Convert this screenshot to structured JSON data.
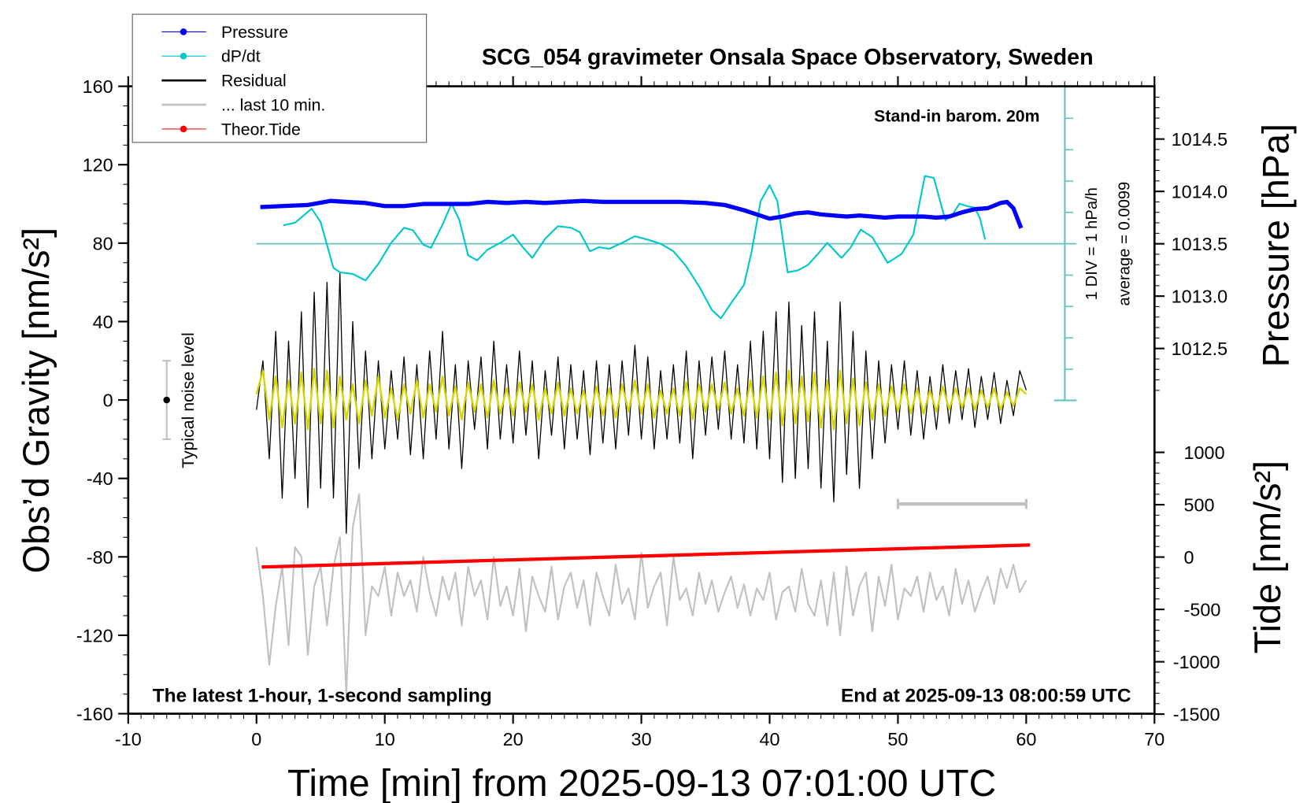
{
  "chart_data": {
    "type": "line",
    "title": "SCG_054 gravimeter Onsala Space Observatory, Sweden",
    "xlabel": "Time [min] from 2025-09-13 07:01:00 UTC",
    "ylabel": "Obs’d Gravity [nm/s²]",
    "ylabel_right_top": "Pressure [hPa]",
    "ylabel_right_bottom": "Tide [nm/s²]",
    "xlim": [
      -10,
      70
    ],
    "ylim": [
      -160,
      160
    ],
    "xticks": [
      "-10",
      "0",
      "10",
      "20",
      "30",
      "40",
      "50",
      "60",
      "70"
    ],
    "yticks": [
      "160",
      "120",
      "80",
      "40",
      "0",
      "-40",
      "-80",
      "-120",
      "-160"
    ],
    "pressure_axis": {
      "ticks": [
        "1014.5",
        "1014.0",
        "1013.5",
        "1013.0",
        "1012.5"
      ]
    },
    "tide_axis": {
      "ticks": [
        "1000",
        "500",
        "0",
        "-500",
        "-1000",
        "-1500"
      ]
    },
    "annotations": {
      "barometer": "Stand-in barom. 20m",
      "bottom_left": "The latest 1-hour, 1-second sampling",
      "bottom_right": "End at 2025-09-13 08:00:59 UTC",
      "dpdt_scale": "1 DIV = 1 hPa/h",
      "dpdt_average": "average = 0.0099",
      "noise": "Typical noise level"
    },
    "legend": {
      "placement": "top-left",
      "items": [
        {
          "label": "Pressure",
          "color": "#0000ff",
          "marker": true
        },
        {
          "label": "dP/dt",
          "color": "#00c8c8",
          "marker": true
        },
        {
          "label": "Residual",
          "color": "#000000",
          "marker": false
        },
        {
          "label": "... last 10 min.",
          "color": "#c0c0c0",
          "marker": false
        },
        {
          "label": "Theor.Tide",
          "color": "#ff0000",
          "marker": true
        }
      ]
    },
    "noise_level": {
      "x": -7,
      "center": 0,
      "low": -20,
      "high": 20
    },
    "last10_bar": {
      "x": [
        50,
        60
      ],
      "y": -53
    },
    "series": {
      "pressure_hpa": {
        "x": [
          0.3,
          2,
          4,
          5.8,
          7,
          8.5,
          10,
          11.5,
          13,
          15,
          16.5,
          18,
          19.5,
          21,
          22.5,
          24,
          25.5,
          27,
          28.5,
          30,
          31,
          33,
          35,
          36.5,
          38,
          39,
          40,
          41,
          42,
          43,
          44,
          45,
          46,
          47,
          48,
          49,
          50,
          51,
          52,
          53,
          54,
          55,
          56,
          57,
          58,
          58.5,
          59,
          59.6
        ],
        "y": [
          1013.85,
          1013.86,
          1013.87,
          1013.91,
          1013.9,
          1013.89,
          1013.86,
          1013.86,
          1013.88,
          1013.88,
          1013.88,
          1013.9,
          1013.89,
          1013.9,
          1013.89,
          1013.9,
          1013.91,
          1013.9,
          1013.9,
          1013.9,
          1013.9,
          1013.9,
          1013.89,
          1013.87,
          1013.82,
          1013.78,
          1013.74,
          1013.76,
          1013.79,
          1013.8,
          1013.78,
          1013.77,
          1013.76,
          1013.77,
          1013.76,
          1013.75,
          1013.76,
          1013.76,
          1013.76,
          1013.75,
          1013.76,
          1013.8,
          1013.83,
          1013.84,
          1013.89,
          1013.9,
          1013.84,
          1013.65
        ]
      },
      "dpdt_hpa_per_h": {
        "x": [
          2.1,
          3,
          4.3,
          5,
          6,
          6.5,
          7.5,
          8.5,
          9.5,
          10.5,
          11.5,
          12.2,
          13,
          13.6,
          14.5,
          15.2,
          15.8,
          16.5,
          17.2,
          18,
          19,
          20,
          20.8,
          21.5,
          22.5,
          23.5,
          24.5,
          25.2,
          26,
          26.7,
          27.5,
          28.5,
          29.5,
          30.5,
          31.5,
          32.5,
          33.5,
          34.5,
          35.5,
          36.2,
          37,
          38,
          38.6,
          39.3,
          40,
          40.6,
          41.4,
          42.2,
          43,
          44,
          44.5,
          45.6,
          46.3,
          47.1,
          48,
          49.2,
          50.3,
          51.2,
          52.1,
          52.8,
          53.7,
          54.3,
          54.8,
          55.4,
          56,
          56.4,
          56.8
        ],
        "y": [
          0.59,
          0.67,
          1.12,
          0.69,
          -0.77,
          -0.91,
          -0.96,
          -1.17,
          -0.64,
          0.03,
          0.51,
          0.43,
          -0.03,
          -0.13,
          0.61,
          1.28,
          0.77,
          -0.37,
          -0.53,
          -0.19,
          0.03,
          0.29,
          -0.13,
          -0.45,
          0.16,
          0.56,
          0.51,
          0.37,
          -0.24,
          -0.11,
          -0.16,
          0.03,
          0.24,
          0.13,
          0.0,
          -0.24,
          -0.72,
          -1.36,
          -2.11,
          -2.38,
          -1.89,
          -1.31,
          -0.24,
          1.36,
          1.87,
          1.36,
          -0.91,
          -0.85,
          -0.67,
          -0.21,
          0.03,
          -0.45,
          -0.13,
          0.45,
          0.21,
          -0.61,
          -0.32,
          0.29,
          2.16,
          2.1,
          0.75,
          0.96,
          1.28,
          1.2,
          1.15,
          0.8,
          0.13
        ]
      },
      "residual": {
        "x_range": [
          0,
          60
        ],
        "y": [
          -5,
          20,
          -30,
          35,
          -50,
          30,
          -40,
          45,
          -55,
          55,
          -45,
          60,
          -50,
          65,
          -68,
          40,
          -35,
          25,
          -30,
          20,
          -25,
          15,
          -20,
          22,
          -28,
          18,
          -30,
          25,
          -20,
          35,
          -25,
          18,
          -35,
          20,
          -15,
          22,
          -25,
          30,
          -20,
          18,
          -22,
          25,
          -18,
          20,
          -30,
          15,
          -18,
          22,
          -25,
          18,
          -20,
          15,
          -28,
          20,
          -22,
          18,
          -25,
          20,
          -18,
          28,
          -20,
          22,
          -25,
          15,
          -20,
          18,
          -22,
          25,
          -30,
          20,
          -18,
          22,
          -15,
          25,
          -20,
          18,
          -22,
          30,
          -25,
          35,
          -30,
          45,
          -42,
          50,
          -40,
          38,
          -35,
          45,
          -45,
          30,
          -52,
          50,
          -38,
          35,
          -45,
          25,
          -30,
          20,
          -22,
          18,
          -15,
          20,
          -18,
          15,
          -20,
          12,
          -15,
          18,
          -12,
          15,
          -10,
          16,
          -14,
          12,
          -10,
          14,
          -12,
          10,
          -8,
          15,
          5
        ]
      },
      "residual_filtered": {
        "x_range": [
          0,
          60
        ],
        "y": [
          3,
          15,
          -10,
          12,
          -14,
          10,
          -12,
          14,
          -15,
          16,
          -12,
          15,
          -14,
          12,
          -10,
          8,
          -12,
          10,
          -8,
          12,
          -9,
          6,
          -10,
          8,
          -7,
          10,
          -9,
          8,
          -6,
          12,
          -8,
          7,
          -10,
          9,
          -6,
          8,
          -9,
          10,
          -7,
          6,
          -8,
          9,
          -6,
          8,
          -10,
          6,
          -7,
          9,
          -8,
          6,
          -7,
          5,
          -9,
          7,
          -8,
          6,
          -9,
          8,
          -6,
          10,
          -7,
          8,
          -9,
          5,
          -7,
          6,
          -8,
          9,
          -10,
          8,
          -6,
          8,
          -5,
          9,
          -7,
          6,
          -8,
          10,
          -9,
          12,
          -10,
          14,
          -13,
          15,
          -12,
          12,
          -11,
          14,
          -14,
          10,
          -15,
          15,
          -12,
          11,
          -13,
          9,
          -10,
          8,
          -8,
          7,
          -6,
          8,
          -7,
          6,
          -7,
          5,
          -6,
          7,
          -5,
          6,
          -4,
          6,
          -5,
          5,
          -4,
          6,
          -5,
          4,
          -3,
          6,
          3
        ]
      },
      "last_10_min": {
        "x_range": [
          0,
          60
        ],
        "y": [
          -75,
          -100,
          -135,
          -105,
          -85,
          -125,
          -75,
          -80,
          -130,
          -95,
          -85,
          -115,
          -85,
          -70,
          -150,
          -65,
          -48,
          -120,
          -95,
          -100,
          -85,
          -110,
          -88,
          -100,
          -92,
          -108,
          -80,
          -98,
          -110,
          -90,
          -102,
          -88,
          -115,
          -85,
          -100,
          -92,
          -112,
          -80,
          -105,
          -95,
          -110,
          -86,
          -118,
          -90,
          -100,
          -108,
          -85,
          -112,
          -95,
          -88,
          -106,
          -92,
          -115,
          -88,
          -100,
          -110,
          -84,
          -104,
          -96,
          -112,
          -78,
          -106,
          -95,
          -88,
          -115,
          -80,
          -102,
          -96,
          -110,
          -88,
          -104,
          -92,
          -108,
          -98,
          -90,
          -106,
          -94,
          -110,
          -96,
          -102,
          -88,
          -112,
          -98,
          -95,
          -108,
          -86,
          -104,
          -110,
          -92,
          -115,
          -88,
          -120,
          -85,
          -110,
          -95,
          -88,
          -118,
          -90,
          -105,
          -84,
          -112,
          -96,
          -100,
          -90,
          -108,
          -88,
          -102,
          -95,
          -110,
          -86,
          -104,
          -92,
          -108,
          -98,
          -90,
          -104,
          -86,
          -96,
          -84,
          -98,
          -92
        ]
      },
      "theor_tide": {
        "x": [
          0.4,
          60.3
        ],
        "y": [
          -95,
          115
        ]
      }
    },
    "colors": {
      "pressure": "#0000ff",
      "dpdt": "#00c8c8",
      "dpdt_axis": "#66c2c2",
      "residual": "#000000",
      "filtered": "#d4d400",
      "last10": "#c0c0c0",
      "tide": "#ff0000"
    }
  }
}
